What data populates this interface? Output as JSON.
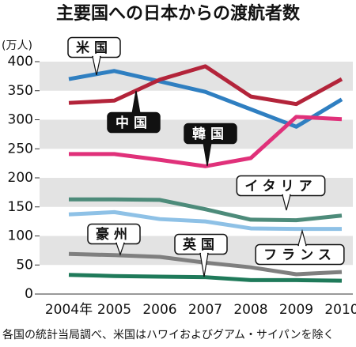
{
  "chart_data": {
    "type": "line",
    "title": "主要国への日本からの渡航者数",
    "y_unit": "(万人)",
    "note": "各国の統計当局調べ、米国はハワイおよびグアム・サイパンを除く",
    "categories": [
      "2004年",
      "2005",
      "2006",
      "2007",
      "2008",
      "2009",
      "2010"
    ],
    "ylim": [
      0,
      400
    ],
    "yticks": [
      0,
      50,
      100,
      150,
      200,
      250,
      300,
      350,
      400
    ],
    "series": [
      {
        "name": "米国",
        "color": "#2f7fc1",
        "values": [
          370,
          384,
          366,
          348,
          318,
          288,
          335
        ]
      },
      {
        "name": "中国",
        "color": "#b3243a",
        "values": [
          329,
          333,
          369,
          392,
          340,
          327,
          370
        ]
      },
      {
        "name": "韓国",
        "color": "#e0317a",
        "values": [
          241,
          241,
          231,
          220,
          234,
          305,
          301
        ]
      },
      {
        "name": "イタリア",
        "color": "#4d8b7a",
        "values": [
          163,
          163,
          162,
          146,
          128,
          127,
          135
        ]
      },
      {
        "name": "フランス",
        "color": "#8ec1e6",
        "values": [
          137,
          141,
          129,
          125,
          113,
          112,
          112
        ]
      },
      {
        "name": "豪州",
        "color": "#7f7f7f",
        "values": [
          69,
          67,
          64,
          54,
          46,
          34,
          38
        ]
      },
      {
        "name": "英国",
        "color": "#1f7a5a",
        "values": [
          33,
          31,
          30,
          29,
          24,
          24,
          23
        ]
      }
    ]
  }
}
